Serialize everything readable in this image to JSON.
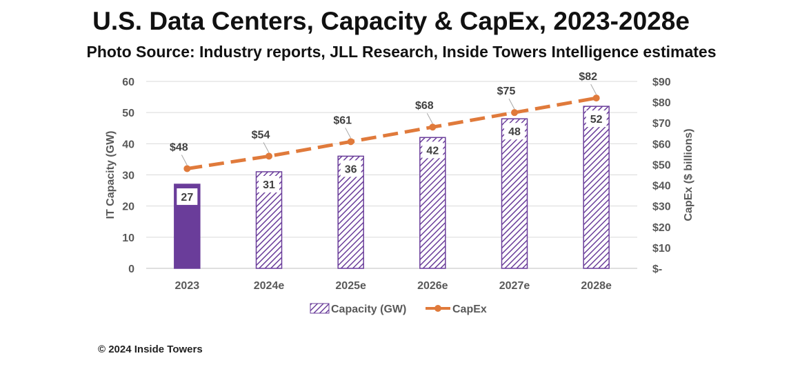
{
  "title": "U.S. Data Centers, Capacity & CapEx, 2023-2028e",
  "subtitle": "Photo Source: Industry reports, JLL Research, Inside Towers Intelligence estimates",
  "footer": "© 2024 Inside Towers",
  "colors": {
    "bar_purple": "#6a3d9a",
    "line_orange": "#e07a3b",
    "grid": "#d9d9d9",
    "tick_text": "#595959"
  },
  "chart_data": {
    "type": "bar",
    "categories": [
      "2023",
      "2024e",
      "2025e",
      "2026e",
      "2027e",
      "2028e"
    ],
    "series": [
      {
        "name": "Capacity (GW)",
        "type": "bar",
        "axis": "left",
        "values": [
          27,
          31,
          36,
          42,
          48,
          52
        ],
        "labels": [
          "27",
          "31",
          "36",
          "42",
          "48",
          "52"
        ],
        "fill": [
          "solid",
          "hatched",
          "hatched",
          "hatched",
          "hatched",
          "hatched"
        ]
      },
      {
        "name": "CapEx",
        "type": "line",
        "style": "dashed",
        "axis": "right",
        "values": [
          48,
          54,
          61,
          68,
          75,
          82
        ],
        "labels": [
          "$48",
          "$54",
          "$61",
          "$68",
          "$75",
          "$82"
        ]
      }
    ],
    "ylabel": "IT Capacity (GW)",
    "y2label": "CapEx ($ billions)",
    "ylim": [
      0,
      60
    ],
    "y2lim": [
      0,
      90
    ],
    "yticks": [
      "0",
      "10",
      "20",
      "30",
      "40",
      "50",
      "60"
    ],
    "y2ticks": [
      "$-",
      "$10",
      "$20",
      "$30",
      "$40",
      "$50",
      "$60",
      "$70",
      "$80",
      "$90"
    ],
    "grid": true,
    "legend": "bottom"
  }
}
